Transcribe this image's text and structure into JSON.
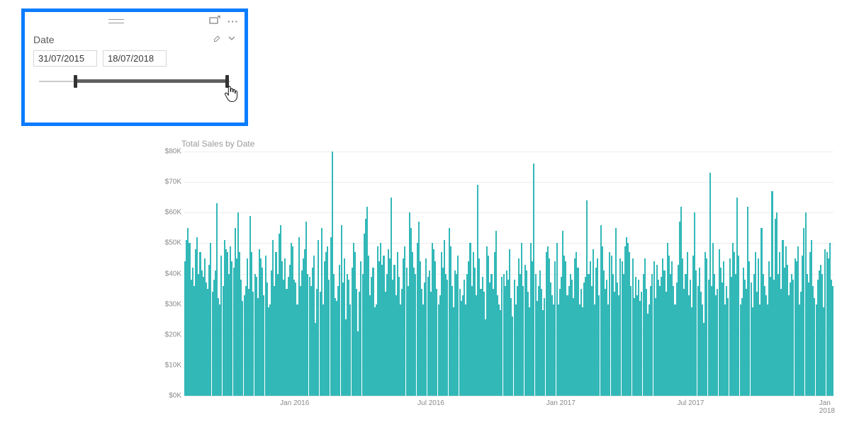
{
  "slicer": {
    "title": "Date",
    "start_date": "31/07/2015",
    "end_date": "18/07/2018",
    "rail_color": "#cccccc",
    "track_color": "#606060",
    "thumb_color": "#333333",
    "start_pos_pct": 19,
    "end_pos_pct": 98,
    "border_color": "#0a7cff"
  },
  "chart": {
    "type": "bar",
    "title": "Total Sales by Date",
    "title_color": "#9a9a9a",
    "title_fontsize": 12,
    "bar_color": "#33b8b8",
    "grid_color": "#ededed",
    "axis_label_color": "#8a8a8a",
    "axis_label_fontsize": 10,
    "background_color": "#ffffff",
    "ymin": 0,
    "ymax": 80000,
    "ytick_labels": [
      "$0K",
      "$10K",
      "$20K",
      "$30K",
      "$40K",
      "$50K",
      "$60K",
      "$70K",
      "$80K"
    ],
    "ytick_values": [
      0,
      10000,
      20000,
      30000,
      40000,
      50000,
      60000,
      70000,
      80000
    ],
    "xtick_labels": [
      "Jan 2016",
      "Jul 2016",
      "Jan 2017",
      "Jul 2017",
      "Jan 2018"
    ],
    "xtick_positions_pct": [
      17,
      38,
      58,
      78,
      99
    ],
    "values": [
      44000,
      51000,
      55000,
      50000,
      38000,
      42000,
      36000,
      48000,
      52000,
      40000,
      47000,
      41000,
      39000,
      45000,
      37000,
      35000,
      43000,
      50000,
      34000,
      38000,
      41000,
      63000,
      32000,
      30000,
      46000,
      36000,
      51000,
      48000,
      47000,
      40000,
      49000,
      44000,
      42000,
      55000,
      45000,
      60000,
      47000,
      38000,
      31000,
      33000,
      36000,
      45000,
      35000,
      59000,
      47000,
      34000,
      40000,
      39000,
      32000,
      48000,
      45000,
      42000,
      33000,
      46000,
      37000,
      29000,
      30000,
      41000,
      51000,
      36000,
      47000,
      40000,
      53000,
      56000,
      44000,
      38000,
      45000,
      35000,
      39000,
      43000,
      50000,
      49000,
      38000,
      37000,
      30000,
      52000,
      36000,
      41000,
      45000,
      48000,
      57000,
      40000,
      39000,
      36000,
      42000,
      46000,
      24000,
      35000,
      51000,
      34000,
      55000,
      30000,
      44000,
      47000,
      49000,
      38000,
      52000,
      80000,
      40000,
      32000,
      31000,
      36000,
      43000,
      56000,
      37000,
      45000,
      25000,
      40000,
      38000,
      30000,
      42000,
      50000,
      47000,
      35000,
      21000,
      34000,
      44000,
      40000,
      53000,
      58000,
      62000,
      46000,
      33000,
      39000,
      42000,
      29000,
      30000,
      49000,
      44000,
      50000,
      43000,
      46000,
      34000,
      40000,
      48000,
      45000,
      65000,
      38000,
      43000,
      33000,
      47000,
      39000,
      30000,
      35000,
      45000,
      49000,
      42000,
      36000,
      60000,
      55000,
      47000,
      42000,
      40000,
      50000,
      57000,
      44000,
      35000,
      30000,
      37000,
      45000,
      39000,
      41000,
      34000,
      50000,
      48000,
      44000,
      35000,
      30000,
      33000,
      47000,
      42000,
      51000,
      40000,
      38000,
      55000,
      49000,
      36000,
      29000,
      41000,
      40000,
      46000,
      35000,
      31000,
      33000,
      38000,
      30000,
      40000,
      44000,
      50000,
      36000,
      47000,
      42000,
      33000,
      69000,
      45000,
      35000,
      39000,
      34000,
      25000,
      49000,
      46000,
      37000,
      40000,
      35000,
      47000,
      54000,
      33000,
      30000,
      28000,
      39000,
      40000,
      36000,
      41000,
      38000,
      48000,
      32000,
      26000,
      38000,
      30000,
      36000,
      45000,
      40000,
      50000,
      36000,
      43000,
      41000,
      34000,
      29000,
      50000,
      44000,
      76000,
      40000,
      31000,
      36000,
      41000,
      35000,
      28000,
      32000,
      47000,
      49000,
      45000,
      37000,
      33000,
      30000,
      44000,
      50000,
      30000,
      35000,
      39000,
      54000,
      46000,
      44000,
      33000,
      36000,
      40000,
      38000,
      32000,
      45000,
      47000,
      42000,
      30000,
      35000,
      29000,
      37000,
      39000,
      64000,
      40000,
      44000,
      36000,
      48000,
      30000,
      42000,
      45000,
      33000,
      56000,
      49000,
      41000,
      35000,
      38000,
      30000,
      47000,
      46000,
      40000,
      34000,
      55000,
      37000,
      33000,
      45000,
      44000,
      40000,
      49000,
      52000,
      50000,
      47000,
      36000,
      45000,
      32000,
      39000,
      33000,
      38000,
      31000,
      34000,
      40000,
      45000,
      35000,
      27000,
      30000,
      36000,
      40000,
      44000,
      32000,
      43000,
      38000,
      36000,
      39000,
      45000,
      41000,
      34000,
      50000,
      46000,
      40000,
      44000,
      36000,
      30000,
      37000,
      43000,
      57000,
      62000,
      45000,
      35000,
      40000,
      47000,
      33000,
      38000,
      29000,
      46000,
      60000,
      41000,
      36000,
      42000,
      34000,
      30000,
      24000,
      47000,
      45000,
      38000,
      73000,
      36000,
      50000,
      40000,
      33000,
      35000,
      48000,
      42000,
      37000,
      44000,
      30000,
      36000,
      32000,
      45000,
      39000,
      50000,
      47000,
      40000,
      65000,
      46000,
      30000,
      32000,
      42000,
      38000,
      35000,
      62000,
      44000,
      37000,
      29000,
      40000,
      47000,
      34000,
      45000,
      30000,
      55000,
      40000,
      36000,
      33000,
      30000,
      44000,
      39000,
      67000,
      38000,
      58000,
      60000,
      40000,
      47000,
      35000,
      51000,
      42000,
      49000,
      43000,
      33000,
      37000,
      40000,
      38000,
      45000,
      44000,
      49000,
      30000,
      34000,
      46000,
      55000,
      60000,
      40000,
      37000,
      47000,
      51000,
      36000,
      32000,
      30000,
      38000,
      41000,
      43000,
      40000,
      29000,
      48000,
      47000,
      45000,
      50000,
      38000,
      36000,
      33000
    ]
  }
}
